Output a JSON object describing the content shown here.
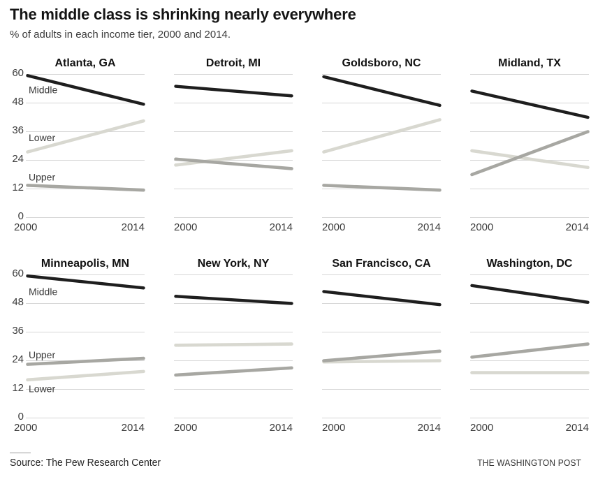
{
  "header": {
    "title": "The middle class is shrinking nearly everywhere",
    "subtitle": "% of adults in each income tier, 2000 and 2014."
  },
  "axes": {
    "y_ticks": [
      60,
      48,
      36,
      24,
      12,
      0
    ],
    "x_start": "2000",
    "x_end": "2014",
    "ylim": [
      0,
      60
    ]
  },
  "colors": {
    "middle": "#1e1e1e",
    "lower": "#d8d8d0",
    "upper": "#a7a7a2",
    "grid": "#c9c9c9",
    "annotation": "#3a3a3a"
  },
  "chart_data": [
    {
      "type": "line",
      "title": "Atlanta, GA",
      "x": [
        "2000",
        "2014"
      ],
      "ylim": [
        0,
        60
      ],
      "series": [
        {
          "name": "Middle",
          "values": [
            59.5,
            47.5
          ]
        },
        {
          "name": "Lower",
          "values": [
            27.5,
            40.5
          ]
        },
        {
          "name": "Upper",
          "values": [
            13.5,
            11.5
          ]
        }
      ],
      "annotations": [
        {
          "text": "Middle",
          "v": 53.5
        },
        {
          "text": "Lower",
          "v": 33.5
        },
        {
          "text": "Upper",
          "v": 17
        }
      ]
    },
    {
      "type": "line",
      "title": "Detroit, MI",
      "x": [
        "2000",
        "2014"
      ],
      "ylim": [
        0,
        60
      ],
      "series": [
        {
          "name": "Middle",
          "values": [
            55,
            51
          ]
        },
        {
          "name": "Lower",
          "values": [
            22,
            28
          ]
        },
        {
          "name": "Upper",
          "values": [
            24.5,
            20.5
          ]
        }
      ],
      "annotations": []
    },
    {
      "type": "line",
      "title": "Goldsboro, NC",
      "x": [
        "2000",
        "2014"
      ],
      "ylim": [
        0,
        60
      ],
      "series": [
        {
          "name": "Middle",
          "values": [
            59,
            47
          ]
        },
        {
          "name": "Lower",
          "values": [
            27.5,
            41
          ]
        },
        {
          "name": "Upper",
          "values": [
            13.5,
            11.5
          ]
        }
      ],
      "annotations": []
    },
    {
      "type": "line",
      "title": "Midland, TX",
      "x": [
        "2000",
        "2014"
      ],
      "ylim": [
        0,
        60
      ],
      "series": [
        {
          "name": "Middle",
          "values": [
            53,
            42
          ]
        },
        {
          "name": "Lower",
          "values": [
            28,
            21
          ]
        },
        {
          "name": "Upper",
          "values": [
            18,
            36
          ]
        }
      ],
      "annotations": []
    },
    {
      "type": "line",
      "title": "Minneapolis, MN",
      "x": [
        "2000",
        "2014"
      ],
      "ylim": [
        0,
        60
      ],
      "series": [
        {
          "name": "Middle",
          "values": [
            59.5,
            54.5
          ]
        },
        {
          "name": "Lower",
          "values": [
            16,
            19.5
          ]
        },
        {
          "name": "Upper",
          "values": [
            22.5,
            25
          ]
        }
      ],
      "annotations": [
        {
          "text": "Middle",
          "v": 53
        },
        {
          "text": "Upper",
          "v": 26.5
        },
        {
          "text": "Lower",
          "v": 12.3
        }
      ]
    },
    {
      "type": "line",
      "title": "New York, NY",
      "x": [
        "2000",
        "2014"
      ],
      "ylim": [
        0,
        60
      ],
      "series": [
        {
          "name": "Middle",
          "values": [
            51,
            48
          ]
        },
        {
          "name": "Lower",
          "values": [
            30.5,
            31
          ]
        },
        {
          "name": "Upper",
          "values": [
            18,
            21
          ]
        }
      ],
      "annotations": []
    },
    {
      "type": "line",
      "title": "San Francisco, CA",
      "x": [
        "2000",
        "2014"
      ],
      "ylim": [
        0,
        60
      ],
      "series": [
        {
          "name": "Middle",
          "values": [
            53,
            47.5
          ]
        },
        {
          "name": "Lower",
          "values": [
            23.5,
            24
          ]
        },
        {
          "name": "Upper",
          "values": [
            24,
            28
          ]
        }
      ],
      "annotations": []
    },
    {
      "type": "line",
      "title": "Washington, DC",
      "x": [
        "2000",
        "2014"
      ],
      "ylim": [
        0,
        60
      ],
      "series": [
        {
          "name": "Middle",
          "values": [
            55.5,
            48.5
          ]
        },
        {
          "name": "Lower",
          "values": [
            19,
            19
          ]
        },
        {
          "name": "Upper",
          "values": [
            25.5,
            31
          ]
        }
      ],
      "annotations": []
    }
  ],
  "footer": {
    "source": "Source: The Pew Research Center",
    "credit": "THE WASHINGTON POST"
  }
}
